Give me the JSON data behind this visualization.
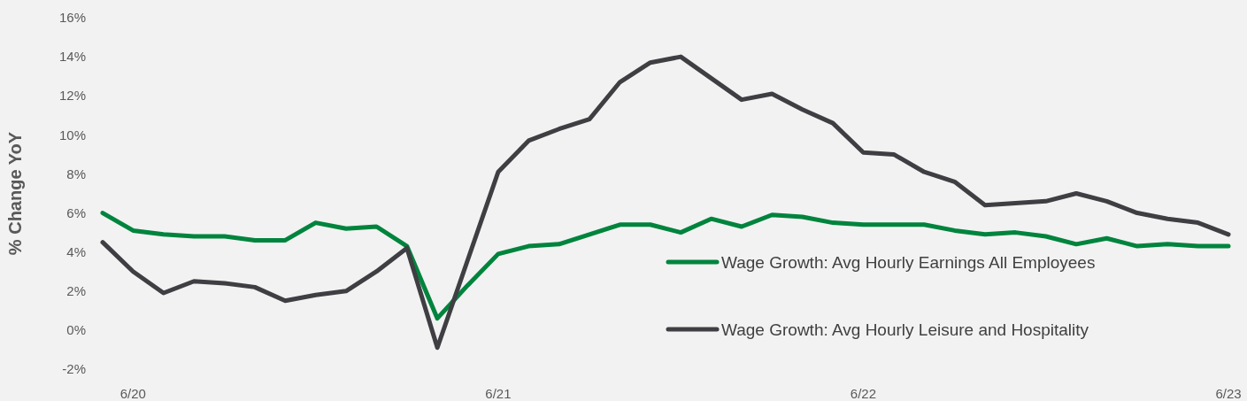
{
  "chart_data": {
    "type": "line",
    "ylabel": "% Change YoY",
    "categories": [
      null,
      "6/20",
      null,
      null,
      null,
      null,
      null,
      null,
      null,
      null,
      null,
      null,
      null,
      "6/21",
      null,
      null,
      null,
      null,
      null,
      null,
      null,
      null,
      null,
      null,
      null,
      "6/22",
      null,
      null,
      null,
      null,
      null,
      null,
      null,
      null,
      null,
      null,
      null,
      "6/23"
    ],
    "ylim": [
      -2,
      16
    ],
    "yticks": [
      {
        "value": -2,
        "label": "-2%"
      },
      {
        "value": 0,
        "label": "0%"
      },
      {
        "value": 2,
        "label": "2%"
      },
      {
        "value": 4,
        "label": "4%"
      },
      {
        "value": 6,
        "label": "6%"
      },
      {
        "value": 8,
        "label": "8%"
      },
      {
        "value": 10,
        "label": "10%"
      },
      {
        "value": 12,
        "label": "12%"
      },
      {
        "value": 14,
        "label": "14%"
      },
      {
        "value": 16,
        "label": "16%"
      }
    ],
    "grid": false,
    "legend": "right",
    "marker": "none",
    "line_style": "solid",
    "series": [
      {
        "name": "Wage Growth: Avg Hourly Earnings All Employees",
        "color": "#00843d",
        "values": [
          6.0,
          5.1,
          4.9,
          4.8,
          4.8,
          4.6,
          4.6,
          5.5,
          5.2,
          5.3,
          4.3,
          0.6,
          2.3,
          3.9,
          4.3,
          4.4,
          4.9,
          5.4,
          5.4,
          5.0,
          5.7,
          5.3,
          5.9,
          5.8,
          5.5,
          5.4,
          5.4,
          5.4,
          5.1,
          4.9,
          5.0,
          4.8,
          4.4,
          4.7,
          4.3,
          4.4,
          4.3,
          4.3
        ]
      },
      {
        "name": "Wage Growth: Avg Hourly Leisure and Hospitality",
        "color": "#3f3f43",
        "values": [
          4.5,
          3.0,
          1.9,
          2.5,
          2.4,
          2.2,
          1.5,
          1.8,
          2.0,
          3.0,
          4.2,
          -0.9,
          3.6,
          8.1,
          9.7,
          10.3,
          10.8,
          12.7,
          13.7,
          14.0,
          12.9,
          11.8,
          12.1,
          11.3,
          10.6,
          9.1,
          9.0,
          8.1,
          7.6,
          6.4,
          6.5,
          6.6,
          7.0,
          6.6,
          6.0,
          5.7,
          5.5,
          4.9
        ]
      }
    ]
  }
}
